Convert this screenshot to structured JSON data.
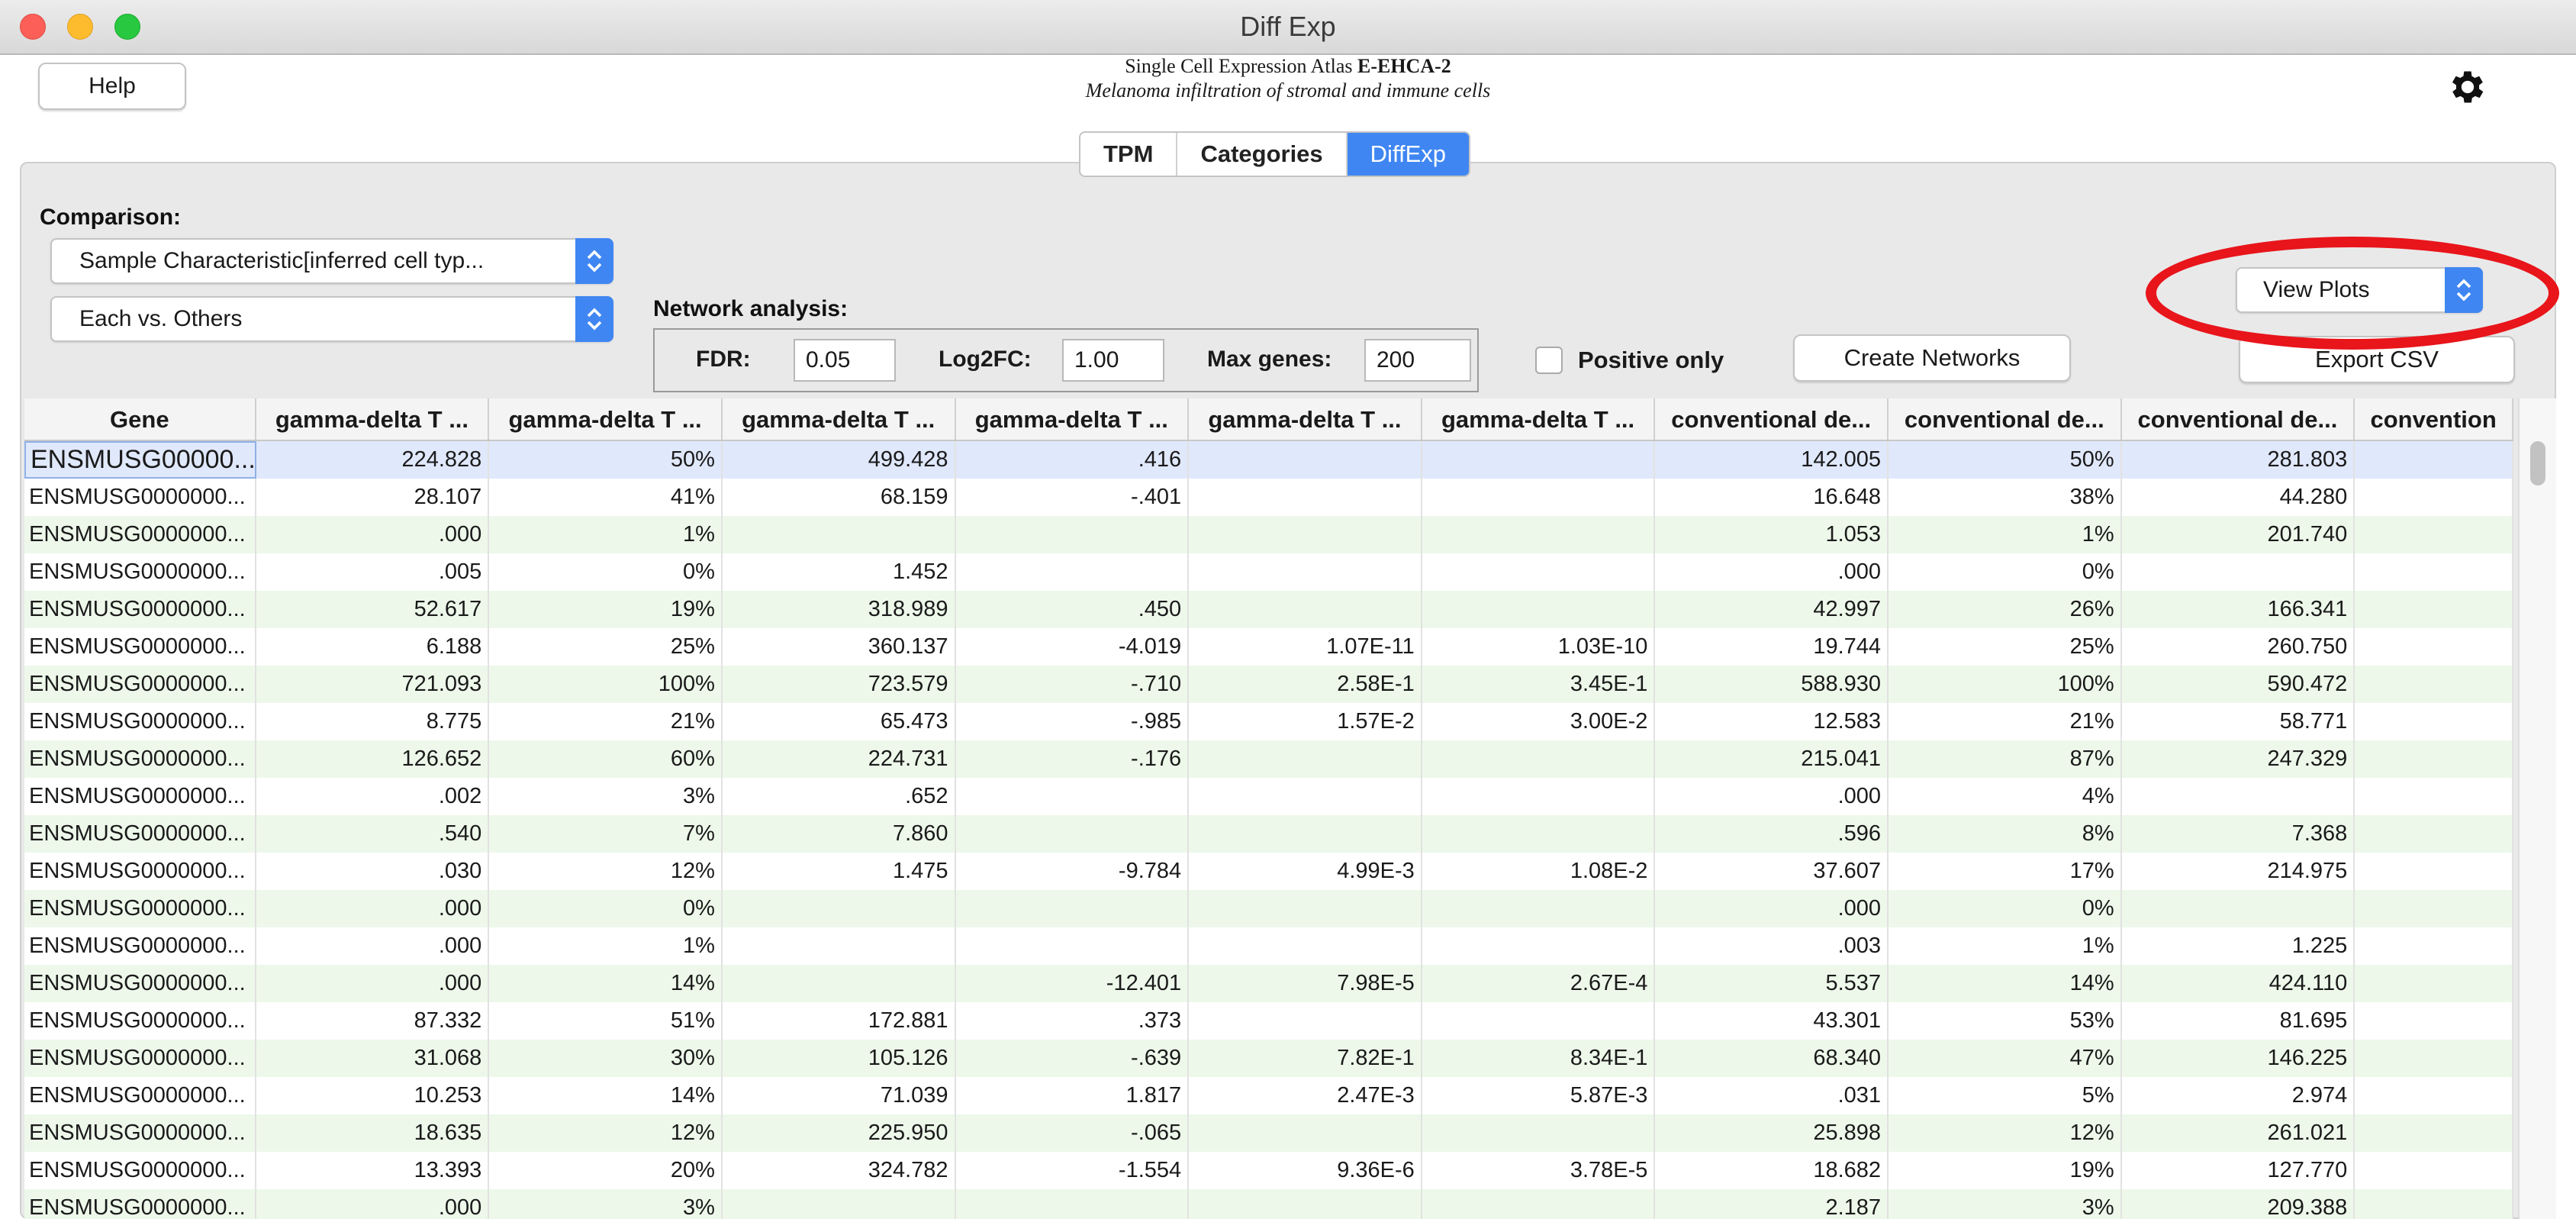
{
  "window": {
    "title": "Diff Exp"
  },
  "header": {
    "atlas_name": "Single Cell Expression Atlas",
    "experiment_id": "E-EHCA-2",
    "subtitle": "Melanoma infiltration of stromal and immune cells",
    "help_label": "Help",
    "settings_icon": "gear-icon"
  },
  "tabs": [
    {
      "label": "TPM",
      "active": false
    },
    {
      "label": "Categories",
      "active": false
    },
    {
      "label": "DiffExp",
      "active": true
    }
  ],
  "controls": {
    "comparison_label": "Comparison:",
    "comparison_value": "Sample Characteristic[inferred cell typ...",
    "mode_value": "Each vs. Others",
    "network_label": "Network analysis:",
    "fdr_label": "FDR:",
    "fdr_value": "0.05",
    "log2fc_label": "Log2FC:",
    "log2fc_value": "1.00",
    "maxgenes_label": "Max genes:",
    "maxgenes_value": "200",
    "positive_only_label": "Positive only",
    "positive_only_checked": false,
    "create_networks_label": "Create Networks",
    "view_plots_value": "View Plots",
    "export_csv_label": "Export CSV"
  },
  "accent_color": "#3f86f2",
  "highlight_color": "#e8151b",
  "table": {
    "columns": [
      "Gene",
      "gamma-delta T ...",
      "gamma-delta T ...",
      "gamma-delta T ...",
      "gamma-delta T ...",
      "gamma-delta T ...",
      "gamma-delta T ...",
      "conventional de...",
      "conventional de...",
      "conventional de...",
      "convention"
    ],
    "rows": [
      [
        "ENSMUSG00000...",
        "224.828",
        "50%",
        "499.428",
        ".416",
        "",
        "",
        "142.005",
        "50%",
        "281.803",
        ""
      ],
      [
        "ENSMUSG0000000...",
        "28.107",
        "41%",
        "68.159",
        "-.401",
        "",
        "",
        "16.648",
        "38%",
        "44.280",
        ""
      ],
      [
        "ENSMUSG0000000...",
        ".000",
        "1%",
        "",
        "",
        "",
        "",
        "1.053",
        "1%",
        "201.740",
        ""
      ],
      [
        "ENSMUSG0000000...",
        ".005",
        "0%",
        "1.452",
        "",
        "",
        "",
        ".000",
        "0%",
        "",
        ""
      ],
      [
        "ENSMUSG0000000...",
        "52.617",
        "19%",
        "318.989",
        ".450",
        "",
        "",
        "42.997",
        "26%",
        "166.341",
        ""
      ],
      [
        "ENSMUSG0000000...",
        "6.188",
        "25%",
        "360.137",
        "-4.019",
        "1.07E-11",
        "1.03E-10",
        "19.744",
        "25%",
        "260.750",
        ""
      ],
      [
        "ENSMUSG0000000...",
        "721.093",
        "100%",
        "723.579",
        "-.710",
        "2.58E-1",
        "3.45E-1",
        "588.930",
        "100%",
        "590.472",
        ""
      ],
      [
        "ENSMUSG0000000...",
        "8.775",
        "21%",
        "65.473",
        "-.985",
        "1.57E-2",
        "3.00E-2",
        "12.583",
        "21%",
        "58.771",
        ""
      ],
      [
        "ENSMUSG0000000...",
        "126.652",
        "60%",
        "224.731",
        "-.176",
        "",
        "",
        "215.041",
        "87%",
        "247.329",
        ""
      ],
      [
        "ENSMUSG0000000...",
        ".002",
        "3%",
        ".652",
        "",
        "",
        "",
        ".000",
        "4%",
        "",
        ""
      ],
      [
        "ENSMUSG0000000...",
        ".540",
        "7%",
        "7.860",
        "",
        "",
        "",
        ".596",
        "8%",
        "7.368",
        ""
      ],
      [
        "ENSMUSG0000000...",
        ".030",
        "12%",
        "1.475",
        "-9.784",
        "4.99E-3",
        "1.08E-2",
        "37.607",
        "17%",
        "214.975",
        ""
      ],
      [
        "ENSMUSG0000000...",
        ".000",
        "0%",
        "",
        "",
        "",
        "",
        ".000",
        "0%",
        "",
        ""
      ],
      [
        "ENSMUSG0000000...",
        ".000",
        "1%",
        "",
        "",
        "",
        "",
        ".003",
        "1%",
        "1.225",
        ""
      ],
      [
        "ENSMUSG0000000...",
        ".000",
        "14%",
        "",
        "-12.401",
        "7.98E-5",
        "2.67E-4",
        "5.537",
        "14%",
        "424.110",
        ""
      ],
      [
        "ENSMUSG0000000...",
        "87.332",
        "51%",
        "172.881",
        ".373",
        "",
        "",
        "43.301",
        "53%",
        "81.695",
        ""
      ],
      [
        "ENSMUSG0000000...",
        "31.068",
        "30%",
        "105.126",
        "-.639",
        "7.82E-1",
        "8.34E-1",
        "68.340",
        "47%",
        "146.225",
        ""
      ],
      [
        "ENSMUSG0000000...",
        "10.253",
        "14%",
        "71.039",
        "1.817",
        "2.47E-3",
        "5.87E-3",
        ".031",
        "5%",
        "2.974",
        ""
      ],
      [
        "ENSMUSG0000000...",
        "18.635",
        "12%",
        "225.950",
        "-.065",
        "",
        "",
        "25.898",
        "12%",
        "261.021",
        ""
      ],
      [
        "ENSMUSG0000000...",
        "13.393",
        "20%",
        "324.782",
        "-1.554",
        "9.36E-6",
        "3.78E-5",
        "18.682",
        "19%",
        "127.770",
        ""
      ],
      [
        "ENSMUSG0000000...",
        ".000",
        "3%",
        "",
        "",
        "",
        "",
        "2.187",
        "3%",
        "209.388",
        ""
      ]
    ]
  }
}
